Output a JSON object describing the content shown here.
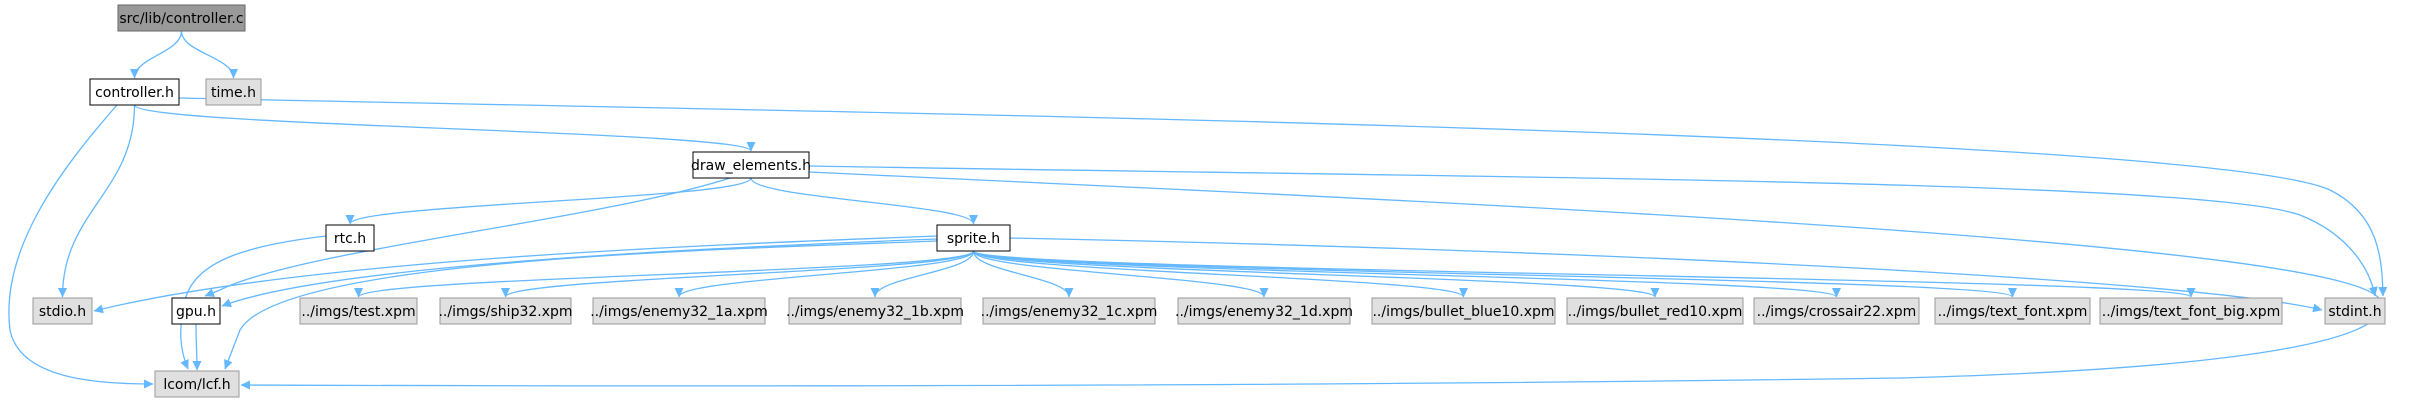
{
  "colors": {
    "edge": "#63b8ff",
    "root_fill": "#999999",
    "root_border": "#666666",
    "doc_fill": "#ffffff",
    "doc_border": "#000000",
    "ext_fill": "#e0e0e0",
    "ext_border": "#999999"
  },
  "nodes": [
    {
      "id": "controller_c",
      "label": "src/lib/controller.c",
      "kind": "root"
    },
    {
      "id": "controller_h",
      "label": "controller.h",
      "kind": "doc"
    },
    {
      "id": "time_h",
      "label": "time.h",
      "kind": "ext"
    },
    {
      "id": "draw_elements_h",
      "label": "draw_elements.h",
      "kind": "doc"
    },
    {
      "id": "rtc_h",
      "label": "rtc.h",
      "kind": "doc"
    },
    {
      "id": "sprite_h",
      "label": "sprite.h",
      "kind": "doc"
    },
    {
      "id": "stdio_h",
      "label": "stdio.h",
      "kind": "ext"
    },
    {
      "id": "gpu_h",
      "label": "gpu.h",
      "kind": "doc"
    },
    {
      "id": "test_xpm",
      "label": "../imgs/test.xpm",
      "kind": "ext"
    },
    {
      "id": "ship32_xpm",
      "label": "../imgs/ship32.xpm",
      "kind": "ext"
    },
    {
      "id": "enemy32_1a_xpm",
      "label": "../imgs/enemy32_1a.xpm",
      "kind": "ext"
    },
    {
      "id": "enemy32_1b_xpm",
      "label": "../imgs/enemy32_1b.xpm",
      "kind": "ext"
    },
    {
      "id": "enemy32_1c_xpm",
      "label": "../imgs/enemy32_1c.xpm",
      "kind": "ext"
    },
    {
      "id": "enemy32_1d_xpm",
      "label": "../imgs/enemy32_1d.xpm",
      "kind": "ext"
    },
    {
      "id": "bullet_blue10_xpm",
      "label": "../imgs/bullet_blue10.xpm",
      "kind": "ext"
    },
    {
      "id": "bullet_red10_xpm",
      "label": "../imgs/bullet_red10.xpm",
      "kind": "ext"
    },
    {
      "id": "crossair22_xpm",
      "label": "../imgs/crossair22.xpm",
      "kind": "ext"
    },
    {
      "id": "text_font_xpm",
      "label": "../imgs/text_font.xpm",
      "kind": "ext"
    },
    {
      "id": "text_font_big_xpm",
      "label": "../imgs/text_font_big.xpm",
      "kind": "ext"
    },
    {
      "id": "stdint_h",
      "label": "stdint.h",
      "kind": "ext"
    },
    {
      "id": "lcom_lcf_h",
      "label": "lcom/lcf.h",
      "kind": "ext"
    }
  ],
  "edges": [
    {
      "from": "controller_c",
      "to": "controller_h"
    },
    {
      "from": "controller_c",
      "to": "time_h"
    },
    {
      "from": "controller_h",
      "to": "draw_elements_h"
    },
    {
      "from": "controller_h",
      "to": "stdio_h"
    },
    {
      "from": "controller_h",
      "to": "lcom_lcf_h"
    },
    {
      "from": "controller_h",
      "to": "stdint_h"
    },
    {
      "from": "draw_elements_h",
      "to": "rtc_h"
    },
    {
      "from": "draw_elements_h",
      "to": "sprite_h"
    },
    {
      "from": "draw_elements_h",
      "to": "gpu_h"
    },
    {
      "from": "draw_elements_h",
      "to": "stdint_h"
    },
    {
      "from": "draw_elements_h",
      "to": "lcom_lcf_h"
    },
    {
      "from": "rtc_h",
      "to": "lcom_lcf_h"
    },
    {
      "from": "sprite_h",
      "to": "stdio_h"
    },
    {
      "from": "sprite_h",
      "to": "gpu_h"
    },
    {
      "from": "sprite_h",
      "to": "lcom_lcf_h"
    },
    {
      "from": "sprite_h",
      "to": "test_xpm"
    },
    {
      "from": "sprite_h",
      "to": "ship32_xpm"
    },
    {
      "from": "sprite_h",
      "to": "enemy32_1a_xpm"
    },
    {
      "from": "sprite_h",
      "to": "enemy32_1b_xpm"
    },
    {
      "from": "sprite_h",
      "to": "enemy32_1c_xpm"
    },
    {
      "from": "sprite_h",
      "to": "enemy32_1d_xpm"
    },
    {
      "from": "sprite_h",
      "to": "bullet_blue10_xpm"
    },
    {
      "from": "sprite_h",
      "to": "bullet_red10_xpm"
    },
    {
      "from": "sprite_h",
      "to": "crossair22_xpm"
    },
    {
      "from": "sprite_h",
      "to": "text_font_xpm"
    },
    {
      "from": "sprite_h",
      "to": "text_font_big_xpm"
    },
    {
      "from": "sprite_h",
      "to": "stdint_h"
    },
    {
      "from": "gpu_h",
      "to": "lcom_lcf_h"
    }
  ]
}
